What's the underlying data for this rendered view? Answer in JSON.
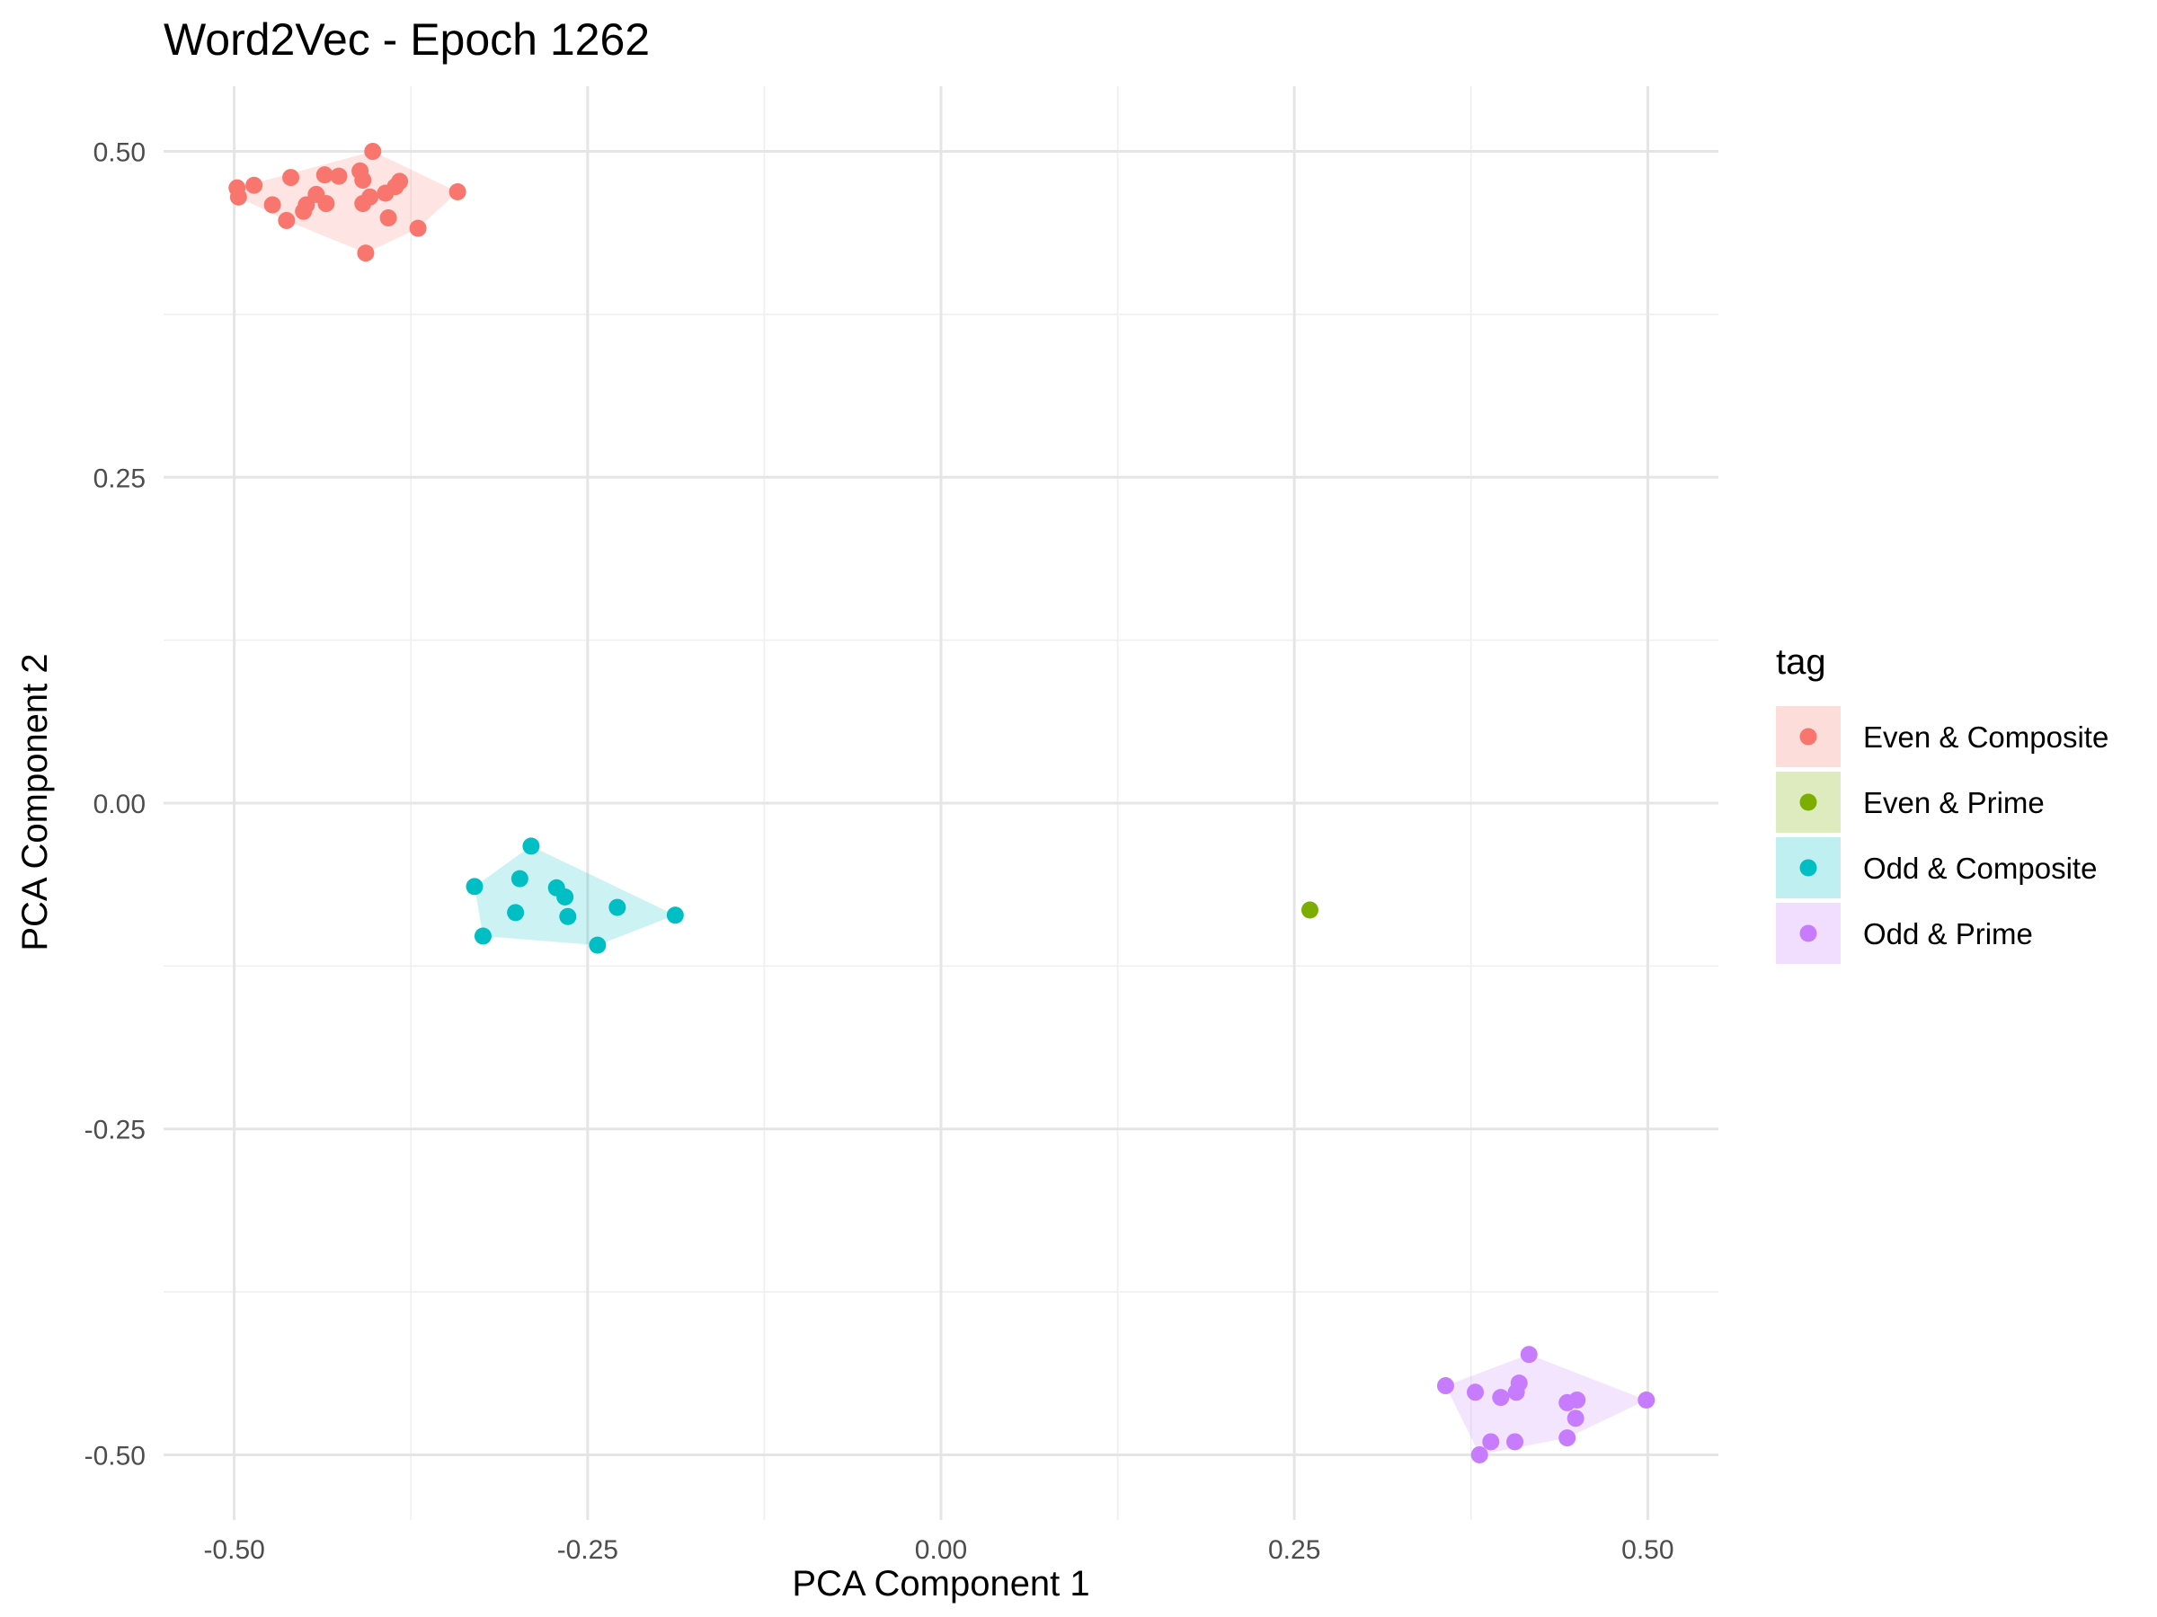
{
  "chart_data": {
    "type": "scatter",
    "title": "Word2Vec - Epoch 1262",
    "xlabel": "PCA Component 1",
    "ylabel": "PCA Component 2",
    "xlim": [
      -0.55,
      0.55
    ],
    "ylim": [
      -0.55,
      0.55
    ],
    "x_ticks": [
      -0.5,
      -0.25,
      0,
      0.25,
      0.5
    ],
    "x_tick_labels": [
      "-0.50",
      "-0.25",
      "0.00",
      "0.25",
      "0.50"
    ],
    "y_ticks": [
      -0.5,
      -0.25,
      0,
      0.25,
      0.5
    ],
    "y_tick_labels": [
      "-0.50",
      "-0.25",
      "0.00",
      "0.25",
      "0.50"
    ],
    "grid": true,
    "legend_title": "tag",
    "legend_position": "right",
    "hulls": true,
    "series": [
      {
        "name": "Even & Composite",
        "color": "#F8766D",
        "points": [
          [
            -0.498,
            0.472
          ],
          [
            -0.497,
            0.465
          ],
          [
            -0.486,
            0.474
          ],
          [
            -0.473,
            0.459
          ],
          [
            -0.46,
            0.48
          ],
          [
            -0.463,
            0.447
          ],
          [
            -0.451,
            0.454
          ],
          [
            -0.449,
            0.459
          ],
          [
            -0.442,
            0.467
          ],
          [
            -0.436,
            0.482
          ],
          [
            -0.435,
            0.46
          ],
          [
            -0.426,
            0.481
          ],
          [
            -0.411,
            0.485
          ],
          [
            -0.409,
            0.478
          ],
          [
            -0.409,
            0.46
          ],
          [
            -0.404,
            0.465
          ],
          [
            -0.402,
            0.5
          ],
          [
            -0.407,
            0.422
          ],
          [
            -0.393,
            0.468
          ],
          [
            -0.391,
            0.449
          ],
          [
            -0.386,
            0.473
          ],
          [
            -0.383,
            0.477
          ],
          [
            -0.37,
            0.441
          ],
          [
            -0.342,
            0.469
          ]
        ]
      },
      {
        "name": "Even & Prime",
        "color": "#7CAE00",
        "points": [
          [
            0.261,
            -0.082
          ]
        ]
      },
      {
        "name": "Odd & Composite",
        "color": "#00BFC4",
        "points": [
          [
            -0.33,
            -0.064
          ],
          [
            -0.29,
            -0.033
          ],
          [
            -0.298,
            -0.058
          ],
          [
            -0.324,
            -0.102
          ],
          [
            -0.301,
            -0.084
          ],
          [
            -0.272,
            -0.065
          ],
          [
            -0.266,
            -0.072
          ],
          [
            -0.264,
            -0.087
          ],
          [
            -0.243,
            -0.109
          ],
          [
            -0.229,
            -0.08
          ],
          [
            -0.188,
            -0.086
          ]
        ]
      },
      {
        "name": "Odd & Prime",
        "color": "#C77CFF",
        "points": [
          [
            0.357,
            -0.447
          ],
          [
            0.378,
            -0.452
          ],
          [
            0.381,
            -0.5
          ],
          [
            0.389,
            -0.49
          ],
          [
            0.396,
            -0.456
          ],
          [
            0.406,
            -0.49
          ],
          [
            0.407,
            -0.452
          ],
          [
            0.409,
            -0.445
          ],
          [
            0.416,
            -0.423
          ],
          [
            0.443,
            -0.46
          ],
          [
            0.443,
            -0.487
          ],
          [
            0.449,
            -0.472
          ],
          [
            0.45,
            -0.458
          ],
          [
            0.499,
            -0.458
          ]
        ]
      }
    ]
  }
}
